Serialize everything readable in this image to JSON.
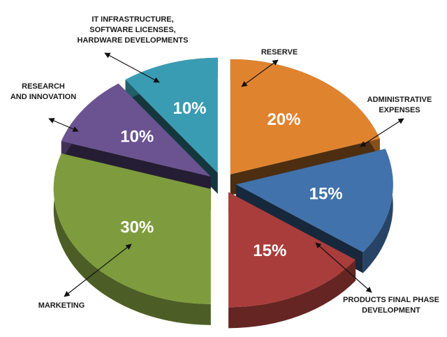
{
  "chart_data": {
    "type": "pie3d",
    "categories": [
      [
        "RESERVE"
      ],
      [
        "ADMINISTRATIVE",
        "EXPENSES"
      ],
      [
        "PRODUCTS FINAL PHASE",
        "DEVELOPMENT"
      ],
      [
        "MARKETING"
      ],
      [
        "RESEARCH",
        "AND INNOVATION"
      ],
      [
        "IT INFRASTRUCTURE,",
        "SOFTWARE LICENSES,",
        "HARDWARE DEVELOPMENTS"
      ]
    ],
    "values": [
      20,
      15,
      15,
      30,
      10,
      10
    ],
    "value_labels": [
      "20%",
      "15%",
      "15%",
      "30%",
      "10%",
      "10%"
    ],
    "colors": [
      "#e0832f",
      "#4172ab",
      "#a93d3b",
      "#7e9c3d",
      "#6b5391",
      "#3a9cb2"
    ]
  }
}
